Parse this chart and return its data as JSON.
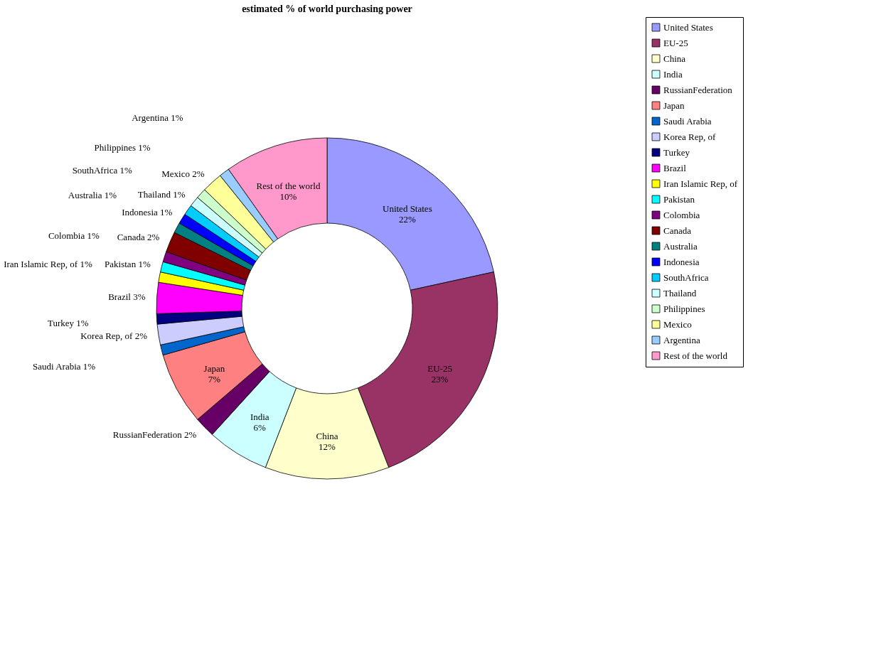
{
  "chart_data": {
    "type": "donut",
    "title": "estimated % of world purchasing power",
    "categories": [
      "United States",
      "EU-25",
      "China",
      "India",
      "RussianFederation",
      "Japan",
      "Saudi Arabia",
      "Korea Rep, of",
      "Turkey",
      "Brazil",
      "Iran Islamic Rep, of",
      "Pakistan",
      "Colombia",
      "Canada",
      "Australia",
      "Indonesia",
      "SouthAfrica",
      "Thailand",
      "Philippines",
      "Mexico",
      "Argentina",
      "Rest of the world"
    ],
    "values": [
      22,
      23,
      12,
      6,
      2,
      7,
      1,
      2,
      1,
      3,
      1,
      1,
      1,
      2,
      1,
      1,
      1,
      1,
      1,
      2,
      1,
      10
    ],
    "value_labels": [
      "22%",
      "23%",
      "12%",
      "6%",
      "2%",
      "7%",
      "1%",
      "2%",
      "1%",
      "3%",
      "1%",
      "1%",
      "1%",
      "2%",
      "1%",
      "1%",
      "1%",
      "1%",
      "1%",
      "2%",
      "1%",
      "10%"
    ],
    "colors": [
      "#9999ff",
      "#993366",
      "#ffffcc",
      "#ccffff",
      "#660066",
      "#ff8080",
      "#0066cc",
      "#ccccff",
      "#000080",
      "#ff00ff",
      "#ffff00",
      "#00ffff",
      "#800080",
      "#800000",
      "#008080",
      "#0000ff",
      "#00ccff",
      "#ccffff",
      "#ccffcc",
      "#ffff99",
      "#99ccff",
      "#ff99cc"
    ],
    "legend": "right"
  }
}
